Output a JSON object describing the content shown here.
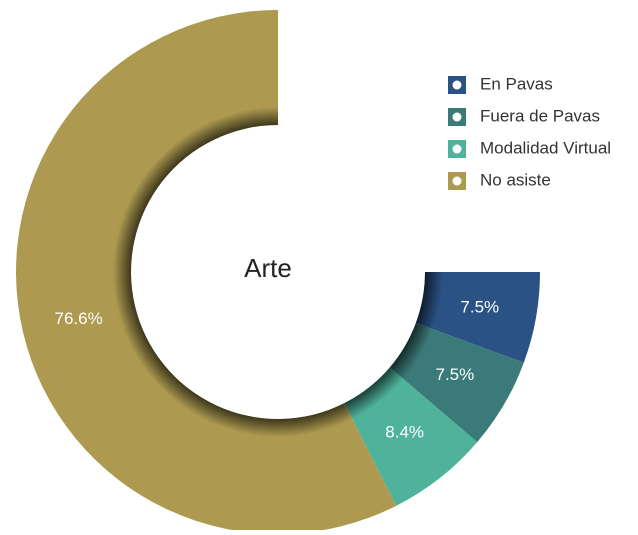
{
  "chart_data": {
    "type": "donut",
    "title": "Arte",
    "categories": [
      "En Pavas",
      "Fuera de Pavas",
      "Modalidad Virtual",
      "No asiste"
    ],
    "values": [
      7.5,
      7.5,
      8.4,
      76.6
    ],
    "value_labels": [
      "7.5%",
      "7.5%",
      "8.4%",
      "76.6%"
    ],
    "colors": [
      "#2a5285",
      "#3a7a78",
      "#4fb39b",
      "#ad9a50"
    ],
    "legend": "top-right"
  }
}
